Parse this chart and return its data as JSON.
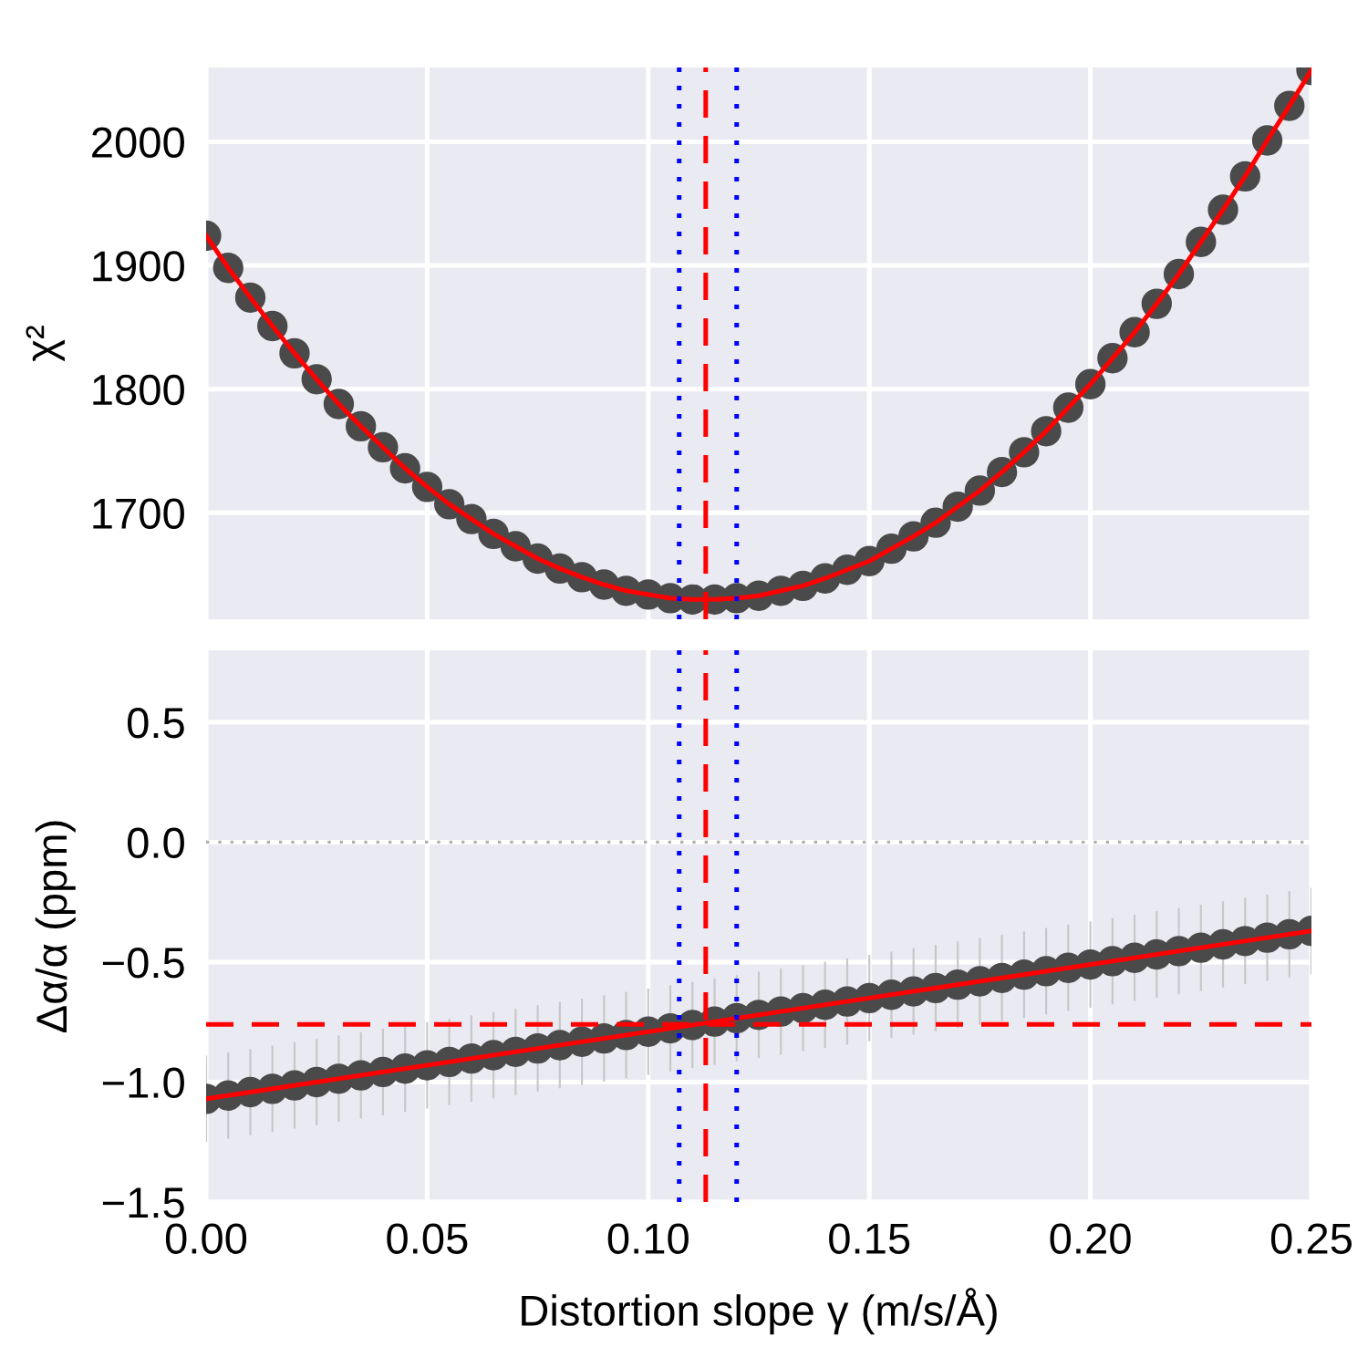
{
  "chart_data": [
    {
      "type": "scatter",
      "ylabel": "χ²",
      "xlim": [
        0.0,
        0.25
      ],
      "xticks": [
        0.0,
        0.05,
        0.1,
        0.15,
        0.2,
        0.25
      ],
      "ylim": [
        1614,
        2060
      ],
      "yticks": [
        1700,
        1800,
        1900,
        2000
      ],
      "tick_labels": "y",
      "grid": true,
      "x": [
        0.0,
        0.005,
        0.01,
        0.015,
        0.02,
        0.025,
        0.03,
        0.035,
        0.04,
        0.045,
        0.05,
        0.055,
        0.06,
        0.065,
        0.07,
        0.075,
        0.08,
        0.085,
        0.09,
        0.095,
        0.1,
        0.105,
        0.11,
        0.115,
        0.12,
        0.125,
        0.13,
        0.135,
        0.14,
        0.145,
        0.15,
        0.155,
        0.16,
        0.165,
        0.17,
        0.175,
        0.18,
        0.185,
        0.19,
        0.195,
        0.2,
        0.205,
        0.21,
        0.215,
        0.22,
        0.225,
        0.23,
        0.235,
        0.24,
        0.245,
        0.25
      ],
      "series": [
        {
          "marker": "circle",
          "color": "#4a4a4a",
          "values": [
            1924,
            1898,
            1874,
            1851,
            1829,
            1808,
            1788,
            1770,
            1753,
            1736,
            1721,
            1707,
            1695,
            1683,
            1673,
            1663,
            1655,
            1648,
            1642,
            1637,
            1634,
            1631,
            1630,
            1630,
            1631,
            1633,
            1637,
            1641,
            1647,
            1654,
            1661,
            1671,
            1681,
            1692,
            1705,
            1718,
            1733,
            1749,
            1766,
            1785,
            1804,
            1825,
            1846,
            1869,
            1893,
            1919,
            1945,
            1972,
            2001,
            2029,
            2058
          ]
        },
        {
          "type": "line",
          "marker": "none",
          "color": "#ff0000",
          "line_style": "solid",
          "values": [
            1924,
            1898,
            1874,
            1851,
            1829,
            1808,
            1788,
            1770,
            1753,
            1736,
            1721,
            1707,
            1695,
            1683,
            1673,
            1663,
            1655,
            1648,
            1642,
            1637,
            1634,
            1631,
            1630,
            1630,
            1631,
            1633,
            1637,
            1641,
            1647,
            1654,
            1661,
            1671,
            1681,
            1692,
            1705,
            1718,
            1733,
            1749,
            1766,
            1785,
            1804,
            1825,
            1846,
            1869,
            1893,
            1919,
            1945,
            1972,
            2001,
            2029,
            2058
          ]
        }
      ],
      "ref_lines": [
        {
          "axis": "x",
          "value": 0.113,
          "color": "#ff0000",
          "line_style": "dashed"
        },
        {
          "axis": "x",
          "value": 0.107,
          "color": "#0000ff",
          "line_style": "dotted"
        },
        {
          "axis": "x",
          "value": 0.12,
          "color": "#0000ff",
          "line_style": "dotted"
        }
      ]
    },
    {
      "type": "scatter",
      "xlabel": "Distortion slope γ (m/s/Å)",
      "ylabel": "Δα/α (ppm)",
      "xlim": [
        0.0,
        0.25
      ],
      "xticks": [
        {
          "value": 0.0,
          "label": "0.00"
        },
        0.05,
        {
          "value": 0.1,
          "label": "0.10"
        },
        0.15,
        {
          "value": 0.2,
          "label": "0.20"
        },
        0.25
      ],
      "ylim": [
        -1.5,
        0.8
      ],
      "yticks": [
        {
          "value": -1.5,
          "label": "−1.5"
        },
        {
          "value": -1.0,
          "label": "−1.0"
        },
        {
          "value": -0.5,
          "label": "−0.5"
        },
        {
          "value": 0.0,
          "label": "0.0"
        },
        0.5
      ],
      "grid": true,
      "x": [
        0.0,
        0.005,
        0.01,
        0.015,
        0.02,
        0.025,
        0.03,
        0.035,
        0.04,
        0.045,
        0.05,
        0.055,
        0.06,
        0.065,
        0.07,
        0.075,
        0.08,
        0.085,
        0.09,
        0.095,
        0.1,
        0.105,
        0.11,
        0.115,
        0.12,
        0.125,
        0.13,
        0.135,
        0.14,
        0.145,
        0.15,
        0.155,
        0.16,
        0.165,
        0.17,
        0.175,
        0.18,
        0.185,
        0.19,
        0.195,
        0.2,
        0.205,
        0.21,
        0.215,
        0.22,
        0.225,
        0.23,
        0.235,
        0.24,
        0.245,
        0.25
      ],
      "series": [
        {
          "marker": "circle",
          "color": "#4a4a4a",
          "values": [
            -1.07,
            -1.056,
            -1.042,
            -1.028,
            -1.014,
            -1.0,
            -0.986,
            -0.972,
            -0.958,
            -0.944,
            -0.93,
            -0.916,
            -0.902,
            -0.888,
            -0.874,
            -0.86,
            -0.846,
            -0.832,
            -0.818,
            -0.804,
            -0.79,
            -0.776,
            -0.762,
            -0.748,
            -0.734,
            -0.72,
            -0.706,
            -0.692,
            -0.678,
            -0.664,
            -0.65,
            -0.636,
            -0.622,
            -0.608,
            -0.594,
            -0.58,
            -0.566,
            -0.552,
            -0.538,
            -0.524,
            -0.51,
            -0.496,
            -0.482,
            -0.468,
            -0.454,
            -0.44,
            -0.426,
            -0.412,
            -0.398,
            -0.384,
            -0.37
          ],
          "errors": [
            0.18,
            0.18,
            0.18,
            0.18,
            0.18,
            0.18,
            0.18,
            0.18,
            0.18,
            0.18,
            0.18,
            0.18,
            0.18,
            0.18,
            0.18,
            0.18,
            0.18,
            0.18,
            0.18,
            0.18,
            0.18,
            0.18,
            0.18,
            0.18,
            0.18,
            0.18,
            0.18,
            0.18,
            0.18,
            0.18,
            0.18,
            0.18,
            0.18,
            0.18,
            0.18,
            0.18,
            0.18,
            0.18,
            0.18,
            0.18,
            0.18,
            0.18,
            0.18,
            0.18,
            0.18,
            0.18,
            0.18,
            0.18,
            0.18,
            0.18,
            0.18
          ]
        },
        {
          "type": "line",
          "marker": "none",
          "color": "#ff0000",
          "line_style": "solid",
          "x": [
            0.0,
            0.25
          ],
          "values": [
            -1.07,
            -0.37
          ]
        }
      ],
      "ref_lines": [
        {
          "axis": "y",
          "value": 0.0,
          "color": "#b0b0b0",
          "line_style": "dotted"
        },
        {
          "axis": "y",
          "value": -0.76,
          "color": "#ff0000",
          "line_style": "dashed"
        },
        {
          "axis": "x",
          "value": 0.113,
          "color": "#ff0000",
          "line_style": "dashed"
        },
        {
          "axis": "x",
          "value": 0.107,
          "color": "#0000ff",
          "line_style": "dotted"
        },
        {
          "axis": "x",
          "value": 0.12,
          "color": "#0000ff",
          "line_style": "dotted"
        }
      ]
    }
  ]
}
